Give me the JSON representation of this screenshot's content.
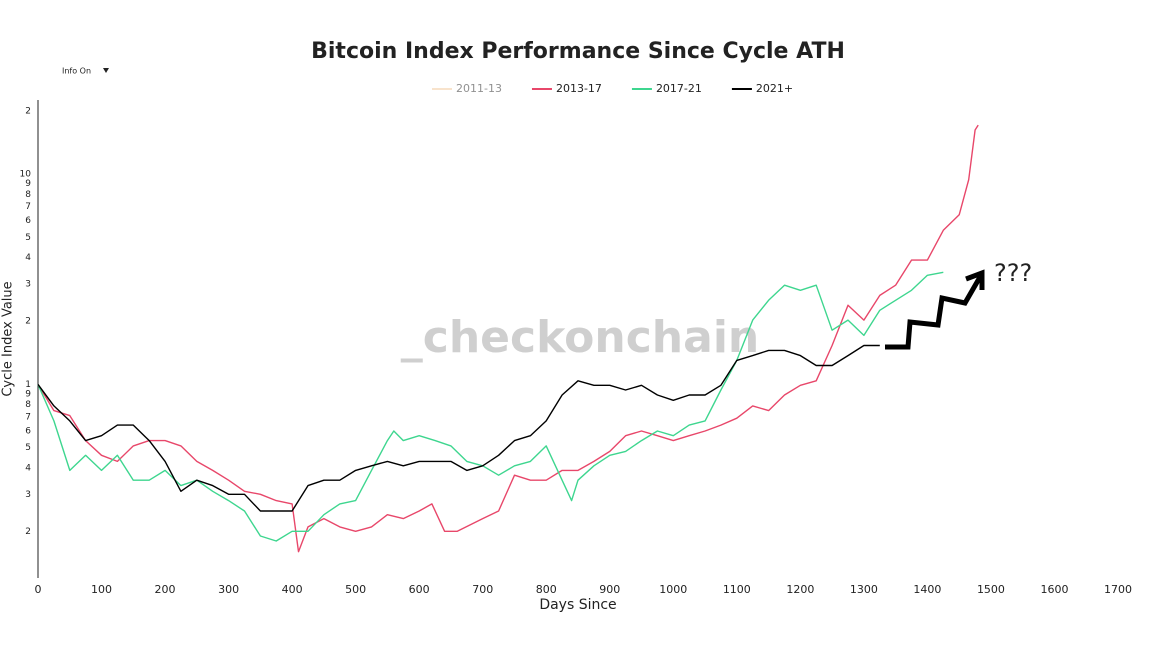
{
  "chart_data": {
    "type": "line",
    "title": "Bitcoin Index Performance Since Cycle ATH",
    "menu": "Info On",
    "watermark": "_checkonchain",
    "xlabel": "Days Since",
    "ylabel": "Cycle Index Value",
    "annotation": "???",
    "log_y": true,
    "grid": false,
    "legend": "top",
    "xlim": [
      0,
      1700
    ],
    "xticks": [
      0,
      100,
      200,
      300,
      400,
      500,
      600,
      700,
      800,
      900,
      1000,
      1100,
      1200,
      1300,
      1400,
      1500,
      1600,
      1700
    ],
    "ylim": [
      0.12,
      22.5
    ],
    "yticks": [
      {
        "value": 0.2,
        "label": "2"
      },
      {
        "value": 0.3,
        "label": "3"
      },
      {
        "value": 0.4,
        "label": "4"
      },
      {
        "value": 0.5,
        "label": "5"
      },
      {
        "value": 0.6,
        "label": "6"
      },
      {
        "value": 0.7,
        "label": "7"
      },
      {
        "value": 0.8,
        "label": "8"
      },
      {
        "value": 0.9,
        "label": "9"
      },
      1,
      {
        "value": 2,
        "label": "2"
      },
      {
        "value": 3,
        "label": "3"
      },
      {
        "value": 4,
        "label": "4"
      },
      {
        "value": 5,
        "label": "5"
      },
      {
        "value": 6,
        "label": "6"
      },
      {
        "value": 7,
        "label": "7"
      },
      {
        "value": 8,
        "label": "8"
      },
      {
        "value": 9,
        "label": "9"
      },
      10,
      {
        "value": 20,
        "label": "2"
      }
    ],
    "series": [
      {
        "name": "2011-13",
        "color": "#f3c99b",
        "visible": false
      },
      {
        "name": "2013-17",
        "color": "#e8476a",
        "x": [
          0,
          25,
          50,
          75,
          100,
          125,
          150,
          175,
          200,
          225,
          250,
          275,
          300,
          325,
          350,
          375,
          400,
          410,
          425,
          450,
          475,
          500,
          525,
          550,
          575,
          600,
          620,
          640,
          660,
          700,
          725,
          750,
          775,
          800,
          825,
          850,
          875,
          900,
          925,
          950,
          975,
          1000,
          1025,
          1050,
          1075,
          1100,
          1125,
          1150,
          1175,
          1200,
          1225,
          1250,
          1275,
          1300,
          1325,
          1350,
          1375,
          1400,
          1425,
          1450,
          1465,
          1475,
          1480
        ],
        "values": [
          1.0,
          0.75,
          0.71,
          0.54,
          0.46,
          0.43,
          0.51,
          0.54,
          0.54,
          0.51,
          0.43,
          0.39,
          0.35,
          0.31,
          0.3,
          0.28,
          0.27,
          0.16,
          0.21,
          0.23,
          0.21,
          0.2,
          0.21,
          0.24,
          0.23,
          0.25,
          0.27,
          0.2,
          0.2,
          0.23,
          0.25,
          0.37,
          0.35,
          0.35,
          0.39,
          0.39,
          0.43,
          0.48,
          0.57,
          0.6,
          0.57,
          0.54,
          0.57,
          0.6,
          0.64,
          0.69,
          0.79,
          0.75,
          0.89,
          0.99,
          1.04,
          1.53,
          2.38,
          2.02,
          2.65,
          2.96,
          3.9,
          3.9,
          5.4,
          6.4,
          9.4,
          16.2,
          17.1
        ]
      },
      {
        "name": "2017-21",
        "color": "#3ed68f",
        "x": [
          0,
          25,
          50,
          75,
          100,
          125,
          150,
          175,
          200,
          225,
          250,
          275,
          300,
          325,
          350,
          375,
          400,
          425,
          450,
          475,
          500,
          525,
          550,
          560,
          575,
          600,
          625,
          650,
          675,
          700,
          725,
          750,
          775,
          800,
          825,
          840,
          850,
          875,
          900,
          925,
          950,
          975,
          1000,
          1025,
          1050,
          1075,
          1100,
          1125,
          1150,
          1175,
          1200,
          1225,
          1250,
          1275,
          1300,
          1325,
          1350,
          1375,
          1400,
          1425
        ],
        "values": [
          1.0,
          0.67,
          0.39,
          0.46,
          0.39,
          0.46,
          0.35,
          0.35,
          0.39,
          0.33,
          0.35,
          0.31,
          0.28,
          0.25,
          0.19,
          0.18,
          0.2,
          0.2,
          0.24,
          0.27,
          0.28,
          0.39,
          0.54,
          0.6,
          0.54,
          0.57,
          0.54,
          0.51,
          0.43,
          0.41,
          0.37,
          0.41,
          0.43,
          0.51,
          0.35,
          0.28,
          0.35,
          0.41,
          0.46,
          0.48,
          0.54,
          0.6,
          0.57,
          0.64,
          0.67,
          0.94,
          1.3,
          2.02,
          2.51,
          2.96,
          2.8,
          2.96,
          1.81,
          2.02,
          1.71,
          2.25,
          2.51,
          2.8,
          3.3,
          3.41
        ]
      },
      {
        "name": "2021+",
        "color": "#000000",
        "x": [
          0,
          25,
          50,
          75,
          100,
          125,
          150,
          175,
          200,
          225,
          250,
          275,
          300,
          325,
          350,
          375,
          400,
          425,
          450,
          475,
          500,
          525,
          550,
          575,
          600,
          625,
          650,
          675,
          700,
          725,
          750,
          775,
          800,
          825,
          850,
          875,
          900,
          925,
          950,
          975,
          1000,
          1025,
          1050,
          1075,
          1100,
          1125,
          1150,
          1175,
          1200,
          1225,
          1250,
          1275,
          1300,
          1325
        ],
        "values": [
          1.0,
          0.79,
          0.67,
          0.54,
          0.57,
          0.64,
          0.64,
          0.54,
          0.43,
          0.31,
          0.35,
          0.33,
          0.3,
          0.3,
          0.25,
          0.25,
          0.25,
          0.33,
          0.35,
          0.35,
          0.39,
          0.41,
          0.43,
          0.41,
          0.43,
          0.43,
          0.43,
          0.39,
          0.41,
          0.46,
          0.54,
          0.57,
          0.67,
          0.89,
          1.04,
          0.99,
          0.99,
          0.94,
          0.99,
          0.89,
          0.84,
          0.89,
          0.89,
          0.99,
          1.3,
          1.37,
          1.45,
          1.45,
          1.37,
          1.23,
          1.23,
          1.37,
          1.53,
          1.53
        ]
      }
    ]
  }
}
